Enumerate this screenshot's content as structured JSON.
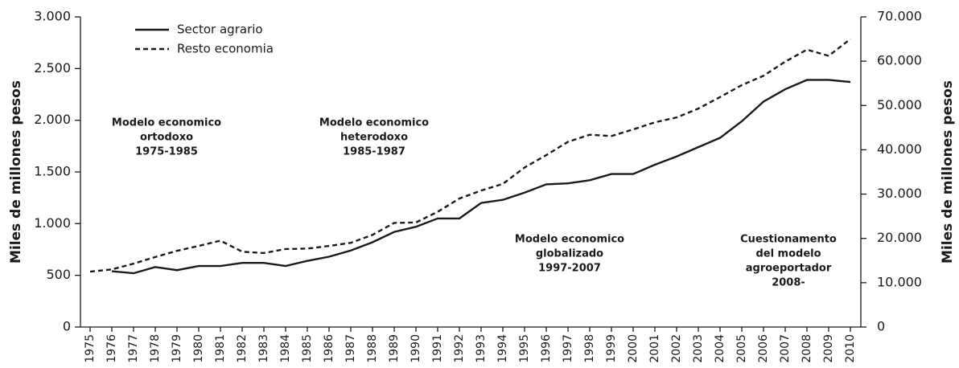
{
  "chart_data": {
    "type": "line",
    "y_label": "Miles de millones pesos",
    "y2_label": "Miles de millones pesos",
    "categories": [
      "1975",
      "1976",
      "1977",
      "1978",
      "1979",
      "1980",
      "1981",
      "1982",
      "1983",
      "1984",
      "1985",
      "1986",
      "1987",
      "1988",
      "1989",
      "1990",
      "1991",
      "1992",
      "1993",
      "1994",
      "1995",
      "1996",
      "1997",
      "1998",
      "1999",
      "2000",
      "2001",
      "2002",
      "2003",
      "2004",
      "2005",
      "2006",
      "2007",
      "2008",
      "2009",
      "2010"
    ],
    "series": [
      {
        "name": "Sector agrario",
        "color": "#1a1a1a",
        "dash": "solid",
        "values": [
          null,
          540,
          520,
          580,
          550,
          590,
          590,
          620,
          620,
          590,
          640,
          680,
          740,
          820,
          920,
          970,
          1050,
          1050,
          1200,
          1230,
          1300,
          1380,
          1390,
          1420,
          1480,
          1480,
          1570,
          1650,
          1740,
          1830,
          1990,
          2180,
          2300,
          2390,
          2390,
          2370
        ]
      },
      {
        "name": "Resto economia",
        "color": "#1a1a1a",
        "dash": "dashed",
        "axis": "y2",
        "values": [
          12500,
          13000,
          14300,
          15800,
          17200,
          18300,
          19500,
          17000,
          16700,
          17600,
          17700,
          18300,
          19000,
          20800,
          23500,
          23600,
          26000,
          29000,
          30800,
          32300,
          36000,
          38800,
          41800,
          43400,
          43100,
          44600,
          46200,
          47300,
          49300,
          51900,
          54600,
          56700,
          59900,
          62600,
          61200,
          65000
        ]
      }
    ],
    "ylim": [
      0,
      3000
    ],
    "yticks": [
      0,
      500,
      {
        "value": 1000,
        "label": "1.000"
      },
      {
        "value": 1500,
        "label": "1.500"
      },
      {
        "value": 2000,
        "label": "2.000"
      },
      {
        "value": 2500,
        "label": "2.500"
      },
      {
        "value": 3000,
        "label": "3.000"
      }
    ],
    "y2lim": [
      0,
      70000
    ],
    "y2ticks": [
      0,
      {
        "value": 10000,
        "label": "10.000"
      },
      {
        "value": 20000,
        "label": "20.000"
      },
      {
        "value": 30000,
        "label": "30.000"
      },
      {
        "value": 40000,
        "label": "40.000"
      },
      {
        "value": 50000,
        "label": "50.000"
      },
      {
        "value": 60000,
        "label": "60.000"
      },
      {
        "value": 70000,
        "label": "70.000"
      }
    ],
    "legend": "upper left",
    "annotations": [
      {
        "lines": [
          "Modelo economico",
          "ortodoxo",
          "1975-1985"
        ]
      },
      {
        "lines": [
          "Modelo economico",
          "heterodoxo",
          "1985-1987"
        ]
      },
      {
        "lines": [
          "Modelo economico",
          "globalizado",
          "1997-2007"
        ]
      },
      {
        "lines": [
          "Cuestionamento",
          "del modelo",
          "agroeportador",
          "2008-"
        ]
      }
    ]
  }
}
